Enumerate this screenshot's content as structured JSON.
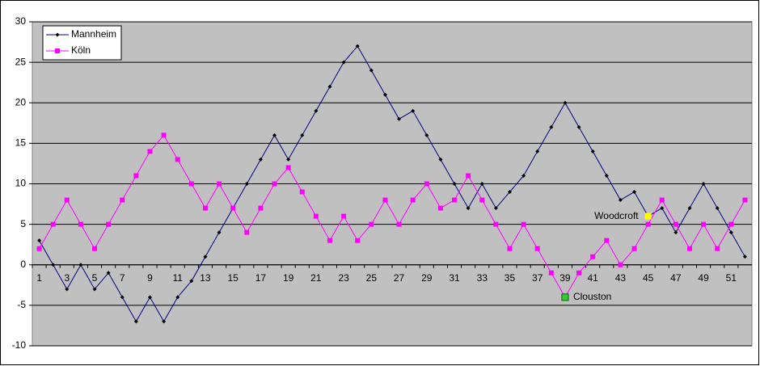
{
  "chart_data": {
    "type": "line",
    "categories": [
      1,
      null,
      3,
      null,
      5,
      null,
      7,
      null,
      9,
      null,
      11,
      null,
      13,
      null,
      15,
      null,
      17,
      null,
      19,
      null,
      21,
      null,
      23,
      null,
      25,
      null,
      27,
      null,
      29,
      null,
      31,
      null,
      33,
      null,
      35,
      null,
      37,
      null,
      39,
      null,
      41,
      null,
      43,
      null,
      45,
      null,
      47,
      null,
      49,
      null,
      51,
      null
    ],
    "series": [
      {
        "name": "Mannheim",
        "color": "#000080",
        "marker_color": "#000000",
        "values": [
          3,
          0,
          -3,
          0,
          -3,
          -1,
          -4,
          -7,
          -4,
          -7,
          -4,
          -2,
          1,
          4,
          7,
          10,
          13,
          16,
          13,
          16,
          19,
          22,
          25,
          27,
          24,
          21,
          18,
          19,
          16,
          13,
          10,
          7,
          10,
          7,
          9,
          11,
          14,
          17,
          20,
          17,
          14,
          11,
          8,
          9,
          6,
          7,
          4,
          7,
          10,
          7,
          4,
          1
        ]
      },
      {
        "name": "Köln",
        "color": "#ff00ff",
        "marker_color": "#ff00ff",
        "values": [
          2,
          5,
          8,
          5,
          2,
          5,
          8,
          11,
          14,
          16,
          13,
          10,
          7,
          10,
          7,
          4,
          7,
          10,
          12,
          9,
          6,
          3,
          6,
          3,
          5,
          8,
          5,
          8,
          10,
          7,
          8,
          11,
          8,
          5,
          2,
          5,
          2,
          -1,
          -4,
          -1,
          1,
          3,
          0,
          2,
          5,
          8,
          5,
          2,
          5,
          2,
          5,
          8
        ]
      }
    ],
    "annotations": [
      {
        "text": "Woodcroft",
        "x": 45,
        "y": 6,
        "color": "#ffff00"
      },
      {
        "text": "Clouston",
        "x": 39,
        "y": -4,
        "color": "#33cc33"
      }
    ],
    "ylim": [
      -10,
      30
    ],
    "yticks": [
      -10,
      -5,
      0,
      5,
      10,
      15,
      20,
      25,
      30
    ],
    "grid": true,
    "legend": "top-left"
  }
}
